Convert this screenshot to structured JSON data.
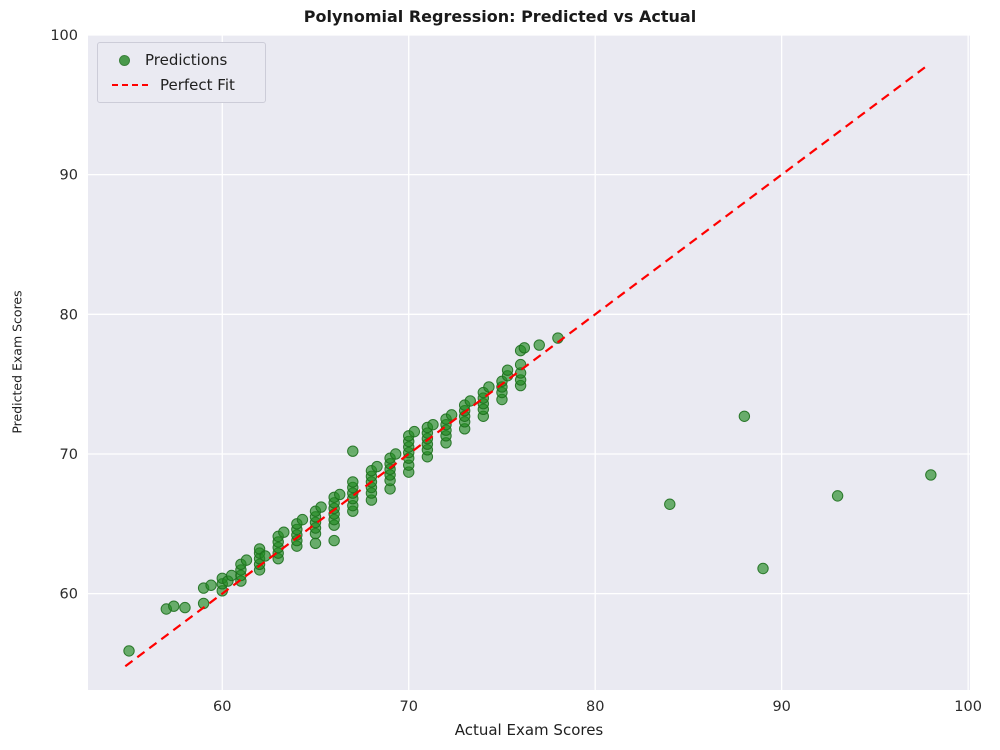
{
  "figure": {
    "background": "#ffffff"
  },
  "chart_data": {
    "type": "scatter",
    "title": "Polynomial Regression: Predicted vs Actual",
    "xlabel": "Actual Exam Scores",
    "ylabel": "Predicted Exam Scores",
    "xlim": [
      52.8,
      100.1
    ],
    "ylim": [
      53.1,
      100
    ],
    "xticks": [
      60,
      70,
      80,
      90,
      100
    ],
    "yticks": [
      60,
      70,
      80,
      90,
      100
    ],
    "grid": true,
    "grid_color": "#ffffff",
    "plot_background": "#eaeaf2",
    "legend_position": "upper-left",
    "series": [
      {
        "name": "Predictions",
        "kind": "scatter",
        "color": "#228b22",
        "edge_color": "#1d6f1d",
        "alpha": 0.65,
        "points": [
          [
            55,
            55.9
          ],
          [
            57,
            58.9
          ],
          [
            57.4,
            59.1
          ],
          [
            58,
            59.0
          ],
          [
            59,
            59.3
          ],
          [
            59,
            60.4
          ],
          [
            59.4,
            60.6
          ],
          [
            60,
            60.2
          ],
          [
            60,
            60.7
          ],
          [
            60,
            61.1
          ],
          [
            60.3,
            60.9
          ],
          [
            60.5,
            61.3
          ],
          [
            61,
            60.9
          ],
          [
            61,
            61.3
          ],
          [
            61,
            61.7
          ],
          [
            61,
            62.1
          ],
          [
            61.3,
            62.4
          ],
          [
            62,
            61.7
          ],
          [
            62,
            62.1
          ],
          [
            62,
            62.5
          ],
          [
            62,
            62.9
          ],
          [
            62,
            63.2
          ],
          [
            62.3,
            62.7
          ],
          [
            63,
            62.5
          ],
          [
            63,
            62.9
          ],
          [
            63,
            63.3
          ],
          [
            63,
            63.7
          ],
          [
            63,
            64.1
          ],
          [
            63.3,
            64.4
          ],
          [
            64,
            63.4
          ],
          [
            64,
            63.8
          ],
          [
            64,
            64.2
          ],
          [
            64,
            64.6
          ],
          [
            64,
            65.0
          ],
          [
            64.3,
            65.3
          ],
          [
            65,
            63.6
          ],
          [
            65,
            64.3
          ],
          [
            65,
            64.7
          ],
          [
            65,
            65.1
          ],
          [
            65,
            65.5
          ],
          [
            65,
            65.9
          ],
          [
            65.3,
            66.2
          ],
          [
            66,
            63.8
          ],
          [
            66,
            64.9
          ],
          [
            66,
            65.3
          ],
          [
            66,
            65.7
          ],
          [
            66,
            66.1
          ],
          [
            66,
            66.5
          ],
          [
            66,
            66.9
          ],
          [
            66.3,
            67.1
          ],
          [
            67,
            65.9
          ],
          [
            67,
            66.3
          ],
          [
            67,
            66.8
          ],
          [
            67,
            67.2
          ],
          [
            67,
            67.6
          ],
          [
            67,
            68.0
          ],
          [
            67,
            70.2
          ],
          [
            68,
            66.7
          ],
          [
            68,
            67.2
          ],
          [
            68,
            67.6
          ],
          [
            68,
            68.0
          ],
          [
            68,
            68.4
          ],
          [
            68,
            68.8
          ],
          [
            68.3,
            69.1
          ],
          [
            69,
            67.5
          ],
          [
            69,
            68.1
          ],
          [
            69,
            68.5
          ],
          [
            69,
            68.9
          ],
          [
            69,
            69.3
          ],
          [
            69,
            69.7
          ],
          [
            69.3,
            70.0
          ],
          [
            70,
            68.7
          ],
          [
            70,
            69.2
          ],
          [
            70,
            69.7
          ],
          [
            70,
            70.1
          ],
          [
            70,
            70.5
          ],
          [
            70,
            70.9
          ],
          [
            70,
            71.3
          ],
          [
            70.3,
            71.6
          ],
          [
            71,
            69.8
          ],
          [
            71,
            70.3
          ],
          [
            71,
            70.7
          ],
          [
            71,
            71.1
          ],
          [
            71,
            71.5
          ],
          [
            71,
            71.9
          ],
          [
            71.3,
            72.1
          ],
          [
            72,
            70.8
          ],
          [
            72,
            71.3
          ],
          [
            72,
            71.7
          ],
          [
            72,
            72.1
          ],
          [
            72,
            72.5
          ],
          [
            72.3,
            72.8
          ],
          [
            73,
            71.8
          ],
          [
            73,
            72.3
          ],
          [
            73,
            72.7
          ],
          [
            73,
            73.1
          ],
          [
            73,
            73.5
          ],
          [
            73.3,
            73.8
          ],
          [
            74,
            72.7
          ],
          [
            74,
            73.2
          ],
          [
            74,
            73.6
          ],
          [
            74,
            74.0
          ],
          [
            74,
            74.4
          ],
          [
            74.3,
            74.8
          ],
          [
            75,
            73.9
          ],
          [
            75,
            74.4
          ],
          [
            75,
            74.8
          ],
          [
            75,
            75.2
          ],
          [
            75.3,
            75.6
          ],
          [
            75.3,
            76.0
          ],
          [
            76,
            74.9
          ],
          [
            76,
            75.3
          ],
          [
            76,
            75.8
          ],
          [
            76,
            76.4
          ],
          [
            76,
            77.4
          ],
          [
            76.2,
            77.6
          ],
          [
            77,
            77.8
          ],
          [
            78,
            78.3
          ],
          [
            84,
            66.4
          ],
          [
            88,
            72.7
          ],
          [
            89,
            61.8
          ],
          [
            93,
            67.0
          ],
          [
            98,
            68.5
          ]
        ]
      },
      {
        "name": "Perfect Fit",
        "kind": "line",
        "style": "dashed",
        "color": "#ff0000",
        "points": [
          [
            54.8,
            54.8
          ],
          [
            97.9,
            97.9
          ]
        ]
      }
    ]
  }
}
